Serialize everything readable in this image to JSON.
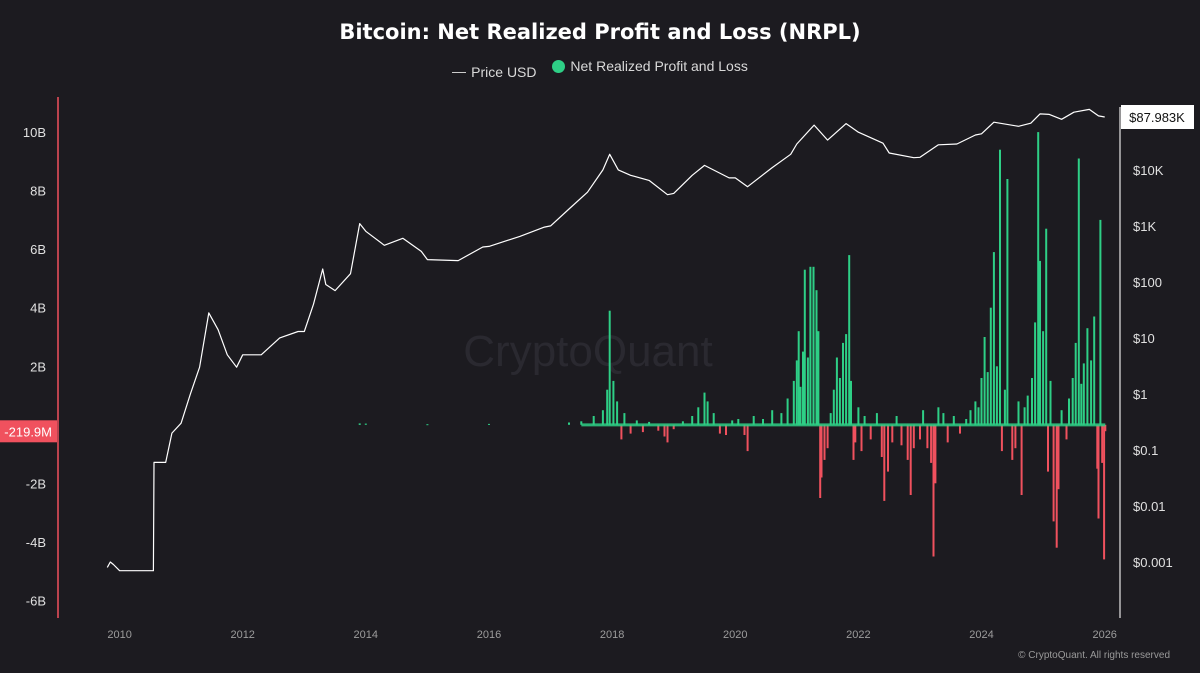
{
  "chart_data": {
    "type": "bar",
    "title": "Bitcoin: Net Realized Profit and Loss (NRPL)",
    "legend": {
      "position": "top-center",
      "price_label": "Price USD",
      "nrpl_label": "Net Realized Profit and Loss"
    },
    "colors": {
      "background": "#1c1b20",
      "profit": "#2ecf86",
      "loss": "#f0515e",
      "price": "#ffffff",
      "left_axis": "#f0515e"
    },
    "watermark": "CryptoQuant",
    "footer": "© CryptoQuant. All rights reserved",
    "grid": false,
    "x_axis": {
      "ticks": [
        "2010",
        "2012",
        "2014",
        "2016",
        "2018",
        "2020",
        "2022",
        "2024",
        "2026"
      ],
      "range": [
        2009.0,
        2026.2
      ]
    },
    "y_left": {
      "range_billions": [
        -6.6,
        11.2
      ],
      "ticks": [
        {
          "v": 10,
          "label": "10B"
        },
        {
          "v": 8,
          "label": "8B"
        },
        {
          "v": 6,
          "label": "6B"
        },
        {
          "v": 4,
          "label": "4B"
        },
        {
          "v": 2,
          "label": "2B"
        },
        {
          "v": -2,
          "label": "-2B"
        },
        {
          "v": -4,
          "label": "-4B"
        },
        {
          "v": -6,
          "label": "-6B"
        }
      ],
      "current_label": "-219.9M",
      "current_value_billions": -0.22
    },
    "y_right": {
      "scale": "log",
      "range_usd": [
        0.0001,
        200000
      ],
      "ticks": [
        {
          "v": 10000,
          "label": "$10K"
        },
        {
          "v": 1000,
          "label": "$1K"
        },
        {
          "v": 100,
          "label": "$100"
        },
        {
          "v": 10,
          "label": "$10"
        },
        {
          "v": 1,
          "label": "$1"
        },
        {
          "v": 0.1,
          "label": "$0.1"
        },
        {
          "v": 0.01,
          "label": "$0.01"
        },
        {
          "v": 0.001,
          "label": "$0.001"
        }
      ],
      "current_label": "$87.983K",
      "current_value": 87983
    },
    "price_series": {
      "name": "Price USD",
      "points": [
        [
          2009.8,
          0.0008
        ],
        [
          2009.85,
          0.001
        ],
        [
          2009.9,
          0.0009
        ],
        [
          2010.0,
          0.0007
        ],
        [
          2010.55,
          0.0007
        ],
        [
          2010.56,
          0.06
        ],
        [
          2010.75,
          0.06
        ],
        [
          2010.85,
          0.2
        ],
        [
          2011.0,
          0.3
        ],
        [
          2011.15,
          1.0
        ],
        [
          2011.3,
          3.0
        ],
        [
          2011.45,
          28
        ],
        [
          2011.6,
          14
        ],
        [
          2011.75,
          5
        ],
        [
          2011.9,
          3
        ],
        [
          2012.0,
          5
        ],
        [
          2012.3,
          5
        ],
        [
          2012.6,
          10
        ],
        [
          2012.9,
          13
        ],
        [
          2013.0,
          13
        ],
        [
          2013.15,
          40
        ],
        [
          2013.3,
          170
        ],
        [
          2013.35,
          90
        ],
        [
          2013.5,
          70
        ],
        [
          2013.75,
          140
        ],
        [
          2013.9,
          1100
        ],
        [
          2014.0,
          800
        ],
        [
          2014.3,
          450
        ],
        [
          2014.6,
          600
        ],
        [
          2014.9,
          350
        ],
        [
          2015.0,
          250
        ],
        [
          2015.5,
          240
        ],
        [
          2015.9,
          420
        ],
        [
          2016.0,
          430
        ],
        [
          2016.5,
          650
        ],
        [
          2016.9,
          950
        ],
        [
          2017.0,
          1000
        ],
        [
          2017.3,
          2000
        ],
        [
          2017.6,
          4000
        ],
        [
          2017.85,
          10000
        ],
        [
          2017.96,
          19000
        ],
        [
          2018.1,
          10000
        ],
        [
          2018.3,
          8000
        ],
        [
          2018.6,
          6500
        ],
        [
          2018.9,
          3600
        ],
        [
          2019.0,
          3800
        ],
        [
          2019.3,
          8000
        ],
        [
          2019.5,
          12000
        ],
        [
          2019.9,
          7200
        ],
        [
          2020.0,
          7200
        ],
        [
          2020.2,
          5000
        ],
        [
          2020.6,
          11000
        ],
        [
          2020.9,
          19000
        ],
        [
          2021.0,
          29000
        ],
        [
          2021.28,
          63000
        ],
        [
          2021.5,
          34000
        ],
        [
          2021.8,
          67000
        ],
        [
          2022.0,
          47000
        ],
        [
          2022.4,
          30000
        ],
        [
          2022.5,
          20000
        ],
        [
          2022.9,
          16500
        ],
        [
          2023.0,
          16800
        ],
        [
          2023.3,
          28000
        ],
        [
          2023.6,
          29000
        ],
        [
          2023.9,
          42000
        ],
        [
          2024.0,
          44000
        ],
        [
          2024.2,
          71000
        ],
        [
          2024.6,
          60000
        ],
        [
          2024.8,
          68000
        ],
        [
          2024.95,
          100000
        ],
        [
          2025.1,
          98000
        ],
        [
          2025.3,
          80000
        ],
        [
          2025.5,
          107000
        ],
        [
          2025.75,
          120000
        ],
        [
          2025.9,
          92000
        ],
        [
          2026.0,
          88000
        ]
      ]
    },
    "nrpl_series": {
      "name": "Net Realized Profit and Loss",
      "unit": "billions USD",
      "points": [
        [
          2013.9,
          0.05
        ],
        [
          2014.0,
          0.04
        ],
        [
          2015.0,
          0.02
        ],
        [
          2016.0,
          0.03
        ],
        [
          2017.3,
          0.08
        ],
        [
          2017.5,
          0.12
        ],
        [
          2017.7,
          0.3
        ],
        [
          2017.85,
          0.5
        ],
        [
          2017.92,
          1.2
        ],
        [
          2017.96,
          3.9
        ],
        [
          2018.02,
          1.5
        ],
        [
          2018.08,
          0.8
        ],
        [
          2018.15,
          -0.5
        ],
        [
          2018.2,
          0.4
        ],
        [
          2018.3,
          -0.3
        ],
        [
          2018.4,
          0.15
        ],
        [
          2018.5,
          -0.25
        ],
        [
          2018.6,
          0.1
        ],
        [
          2018.75,
          -0.2
        ],
        [
          2018.85,
          -0.4
        ],
        [
          2018.9,
          -0.6
        ],
        [
          2019.0,
          -0.15
        ],
        [
          2019.15,
          0.12
        ],
        [
          2019.3,
          0.3
        ],
        [
          2019.4,
          0.6
        ],
        [
          2019.5,
          1.1
        ],
        [
          2019.55,
          0.8
        ],
        [
          2019.65,
          0.4
        ],
        [
          2019.75,
          -0.3
        ],
        [
          2019.85,
          -0.35
        ],
        [
          2019.95,
          0.15
        ],
        [
          2020.05,
          0.2
        ],
        [
          2020.15,
          -0.35
        ],
        [
          2020.2,
          -0.9
        ],
        [
          2020.3,
          0.3
        ],
        [
          2020.45,
          0.2
        ],
        [
          2020.6,
          0.5
        ],
        [
          2020.75,
          0.4
        ],
        [
          2020.85,
          0.9
        ],
        [
          2020.95,
          1.5
        ],
        [
          2021.0,
          2.2
        ],
        [
          2021.03,
          3.2
        ],
        [
          2021.06,
          1.3
        ],
        [
          2021.1,
          2.5
        ],
        [
          2021.13,
          5.3
        ],
        [
          2021.18,
          2.3
        ],
        [
          2021.22,
          5.4
        ],
        [
          2021.27,
          5.4
        ],
        [
          2021.32,
          4.6
        ],
        [
          2021.35,
          3.2
        ],
        [
          2021.38,
          -2.5
        ],
        [
          2021.4,
          -1.8
        ],
        [
          2021.45,
          -1.2
        ],
        [
          2021.5,
          -0.8
        ],
        [
          2021.55,
          0.4
        ],
        [
          2021.6,
          1.2
        ],
        [
          2021.65,
          2.3
        ],
        [
          2021.7,
          1.6
        ],
        [
          2021.75,
          2.8
        ],
        [
          2021.8,
          3.1
        ],
        [
          2021.85,
          5.8
        ],
        [
          2021.88,
          1.5
        ],
        [
          2021.92,
          -1.2
        ],
        [
          2021.95,
          -0.6
        ],
        [
          2022.0,
          0.6
        ],
        [
          2022.05,
          -0.9
        ],
        [
          2022.1,
          0.3
        ],
        [
          2022.2,
          -0.5
        ],
        [
          2022.3,
          0.4
        ],
        [
          2022.38,
          -1.1
        ],
        [
          2022.42,
          -2.6
        ],
        [
          2022.48,
          -1.6
        ],
        [
          2022.55,
          -0.6
        ],
        [
          2022.62,
          0.3
        ],
        [
          2022.7,
          -0.7
        ],
        [
          2022.8,
          -1.2
        ],
        [
          2022.85,
          -2.4
        ],
        [
          2022.9,
          -0.8
        ],
        [
          2023.0,
          -0.5
        ],
        [
          2023.05,
          0.5
        ],
        [
          2023.12,
          -0.8
        ],
        [
          2023.18,
          -1.3
        ],
        [
          2023.22,
          -4.5
        ],
        [
          2023.25,
          -2.0
        ],
        [
          2023.3,
          0.6
        ],
        [
          2023.38,
          0.4
        ],
        [
          2023.45,
          -0.6
        ],
        [
          2023.55,
          0.3
        ],
        [
          2023.65,
          -0.3
        ],
        [
          2023.75,
          0.2
        ],
        [
          2023.82,
          0.5
        ],
        [
          2023.9,
          0.8
        ],
        [
          2023.95,
          0.6
        ],
        [
          2024.0,
          1.6
        ],
        [
          2024.05,
          3.0
        ],
        [
          2024.1,
          1.8
        ],
        [
          2024.15,
          4.0
        ],
        [
          2024.2,
          5.9
        ],
        [
          2024.25,
          2.0
        ],
        [
          2024.3,
          9.4
        ],
        [
          2024.33,
          -0.9
        ],
        [
          2024.38,
          1.2
        ],
        [
          2024.42,
          8.4
        ],
        [
          2024.5,
          -1.2
        ],
        [
          2024.55,
          -0.8
        ],
        [
          2024.6,
          0.8
        ],
        [
          2024.65,
          -2.4
        ],
        [
          2024.7,
          0.6
        ],
        [
          2024.75,
          1.0
        ],
        [
          2024.82,
          1.6
        ],
        [
          2024.87,
          3.5
        ],
        [
          2024.92,
          10.0
        ],
        [
          2024.95,
          5.6
        ],
        [
          2025.0,
          3.2
        ],
        [
          2025.05,
          6.7
        ],
        [
          2025.08,
          -1.6
        ],
        [
          2025.12,
          1.5
        ],
        [
          2025.17,
          -3.3
        ],
        [
          2025.22,
          -4.2
        ],
        [
          2025.25,
          -2.2
        ],
        [
          2025.3,
          0.5
        ],
        [
          2025.38,
          -0.5
        ],
        [
          2025.42,
          0.9
        ],
        [
          2025.48,
          1.6
        ],
        [
          2025.53,
          2.8
        ],
        [
          2025.58,
          9.1
        ],
        [
          2025.62,
          1.4
        ],
        [
          2025.66,
          2.1
        ],
        [
          2025.72,
          3.3
        ],
        [
          2025.78,
          2.2
        ],
        [
          2025.83,
          3.7
        ],
        [
          2025.88,
          -1.5
        ],
        [
          2025.9,
          -3.2
        ],
        [
          2025.93,
          7.0
        ],
        [
          2025.96,
          -1.3
        ],
        [
          2025.99,
          -4.6
        ],
        [
          2026.01,
          -0.22
        ]
      ]
    }
  }
}
